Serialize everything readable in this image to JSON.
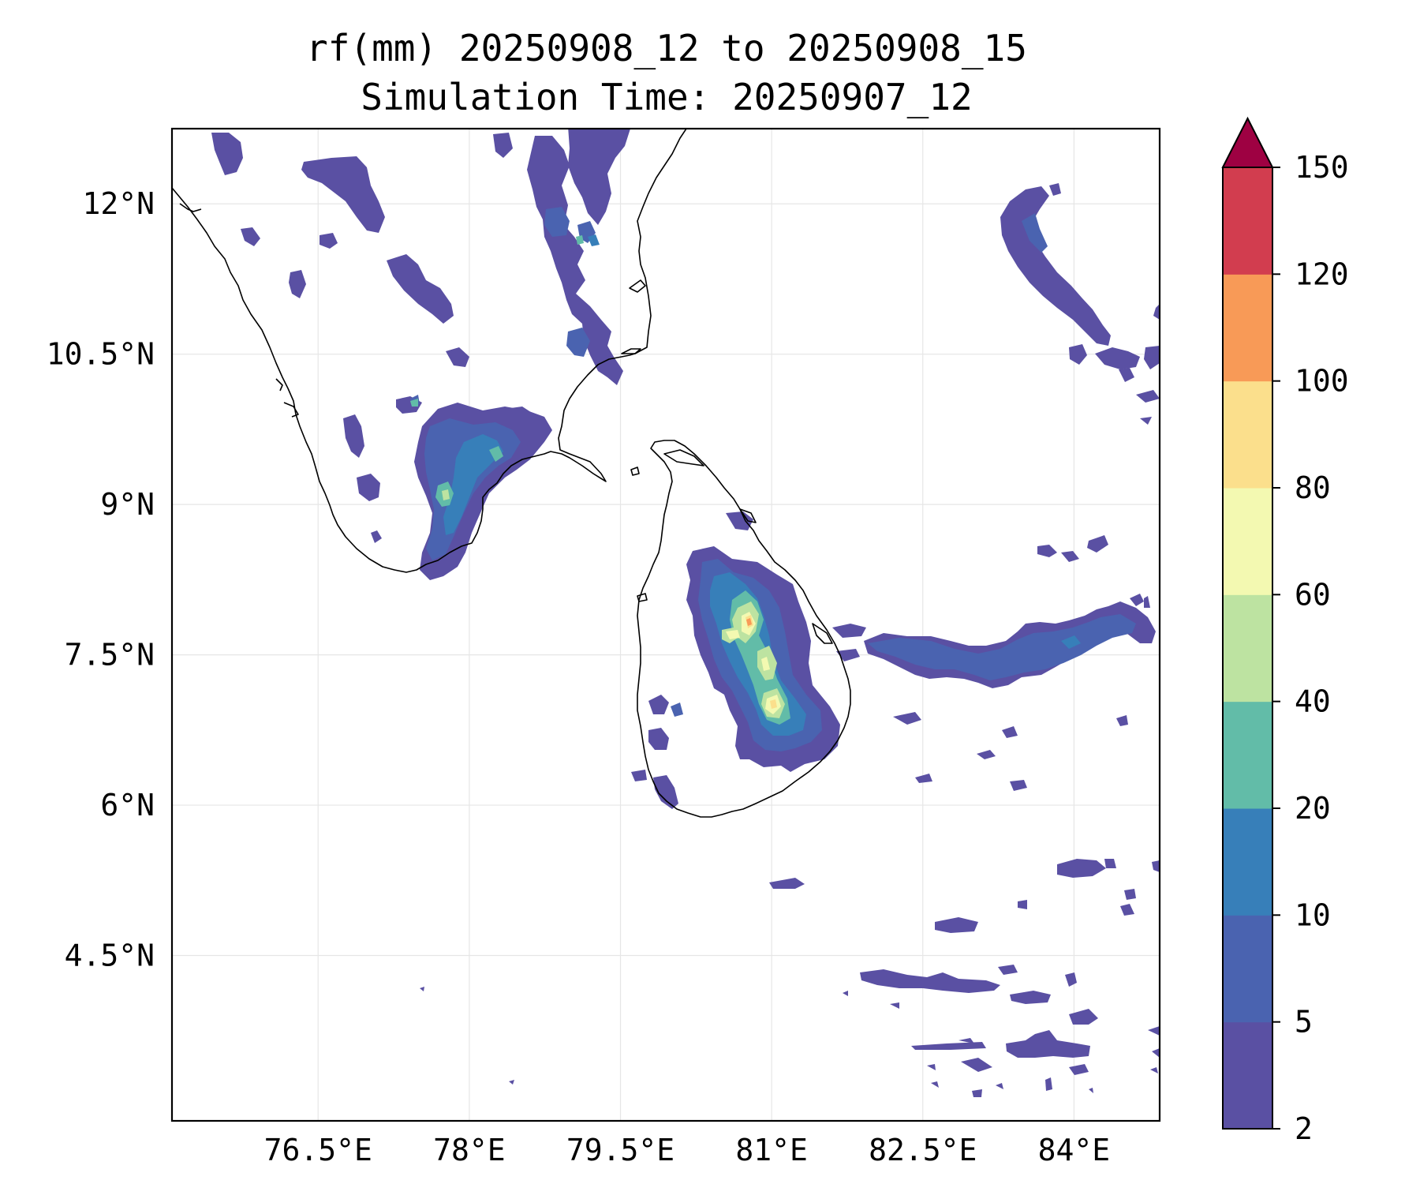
{
  "title_line1": "rf(mm) 20250908_12 to 20250908_15",
  "title_line2": "Simulation Time: 20250907_12",
  "map": {
    "lon_range": [
      75.05,
      84.85
    ],
    "lat_range": [
      2.85,
      12.75
    ],
    "lon_ticks": [
      {
        "value": 76.5,
        "label": "76.5°E"
      },
      {
        "value": 78.0,
        "label": "78°E"
      },
      {
        "value": 79.5,
        "label": "79.5°E"
      },
      {
        "value": 81.0,
        "label": "81°E"
      },
      {
        "value": 82.5,
        "label": "82.5°E"
      },
      {
        "value": 84.0,
        "label": "84°E"
      }
    ],
    "lat_ticks": [
      {
        "value": 12.0,
        "label": "12°N"
      },
      {
        "value": 10.5,
        "label": "10.5°N"
      },
      {
        "value": 9.0,
        "label": "9°N"
      },
      {
        "value": 7.5,
        "label": "7.5°N"
      },
      {
        "value": 6.0,
        "label": "6°N"
      },
      {
        "value": 4.5,
        "label": "4.5°N"
      }
    ],
    "gridlines": true
  },
  "colorbar": {
    "levels": [
      2,
      5,
      10,
      20,
      40,
      60,
      80,
      100,
      120,
      150
    ],
    "labels": [
      "2",
      "5",
      "10",
      "20",
      "40",
      "60",
      "80",
      "100",
      "120",
      "150"
    ],
    "colors": [
      "#5a50a3",
      "#4a63b0",
      "#377fb9",
      "#62bca8",
      "#bde3a1",
      "#f3f9b1",
      "#fbdf8c",
      "#f89a57",
      "#d23d4f"
    ],
    "extend_color": "#9e0142",
    "extend": "max"
  }
}
